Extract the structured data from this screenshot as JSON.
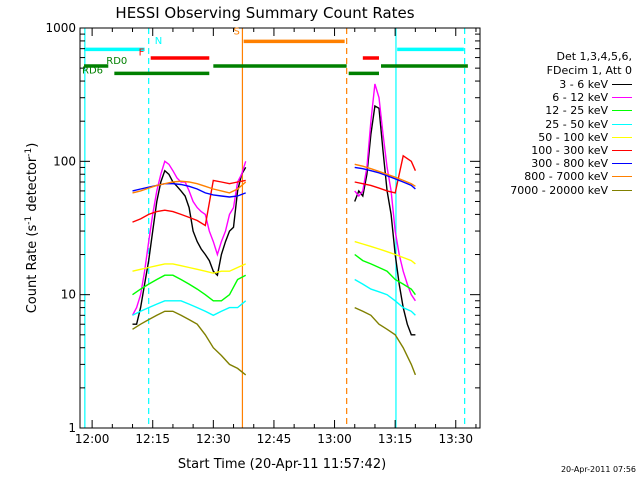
{
  "chart_data": {
    "type": "line",
    "title": "HESSI Observing Summary Count Rates",
    "xlabel": "Start Time (20-Apr-11 11:57:42)",
    "ylabel_parts": [
      "Count Rate (s",
      "-1",
      " detector",
      "-1",
      ")"
    ],
    "y_scale": "log",
    "ylim": [
      1,
      1000
    ],
    "y_ticks": [
      1,
      10,
      100,
      1000
    ],
    "y_ticklabels": [
      "1",
      "10",
      "100",
      "1000"
    ],
    "xlim": [
      -3,
      96
    ],
    "x_ticks": [
      0,
      15,
      30,
      45,
      60,
      75,
      90
    ],
    "x_ticklabels": [
      "12:00",
      "12:15",
      "12:30",
      "12:45",
      "13:00",
      "13:15",
      "13:30"
    ],
    "legend": {
      "header": [
        "Det 1,3,4,5,6,",
        "FDecim 1, Att 0"
      ],
      "placement": "right, outside plot"
    },
    "series": [
      {
        "name": "3 - 6 keV",
        "color": "#000000",
        "x": [
          10,
          11,
          12,
          13,
          14,
          15,
          16,
          17,
          18,
          19,
          20,
          21,
          22,
          23,
          24,
          25,
          26,
          27,
          28,
          29,
          30,
          31,
          32,
          33,
          34,
          35,
          36,
          37,
          38,
          null,
          65,
          66,
          67,
          68,
          69,
          70,
          71,
          72,
          73,
          74,
          75,
          76,
          77,
          78,
          79,
          80
        ],
        "y": [
          6,
          6,
          8,
          12,
          18,
          30,
          50,
          70,
          85,
          80,
          70,
          65,
          60,
          55,
          45,
          30,
          25,
          22,
          20,
          18,
          15,
          14,
          20,
          25,
          30,
          32,
          60,
          80,
          90,
          null,
          50,
          60,
          55,
          80,
          160,
          260,
          250,
          120,
          60,
          40,
          20,
          12,
          8,
          6,
          5,
          5
        ]
      },
      {
        "name": "6 - 12 keV",
        "color": "#ff00ff",
        "x": [
          10,
          11,
          12,
          13,
          14,
          15,
          16,
          17,
          18,
          19,
          20,
          21,
          22,
          23,
          24,
          25,
          26,
          27,
          28,
          29,
          30,
          31,
          32,
          33,
          34,
          35,
          36,
          37,
          38,
          null,
          65,
          66,
          67,
          68,
          69,
          70,
          71,
          72,
          73,
          74,
          75,
          76,
          77,
          78,
          79,
          80
        ],
        "y": [
          7,
          8,
          10,
          15,
          25,
          40,
          60,
          80,
          100,
          95,
          85,
          75,
          70,
          70,
          60,
          50,
          45,
          42,
          40,
          30,
          25,
          20,
          25,
          30,
          40,
          45,
          70,
          80,
          100,
          null,
          60,
          55,
          60,
          90,
          200,
          380,
          300,
          160,
          90,
          60,
          30,
          20,
          15,
          12,
          10,
          9
        ]
      },
      {
        "name": "12 - 25 keV",
        "color": "#00ff00",
        "x": [
          10,
          12,
          14,
          16,
          18,
          20,
          22,
          24,
          26,
          28,
          30,
          32,
          34,
          36,
          38,
          null,
          65,
          67,
          69,
          71,
          73,
          75,
          77,
          79,
          80
        ],
        "y": [
          10,
          11,
          12,
          13,
          14,
          14,
          13,
          12,
          11,
          10,
          9,
          9,
          10,
          13,
          14,
          null,
          20,
          18,
          17,
          16,
          15,
          13,
          12,
          11,
          10
        ]
      },
      {
        "name": "25 - 50 keV",
        "color": "#00ffff",
        "x": [
          10,
          12,
          14,
          16,
          18,
          20,
          22,
          24,
          26,
          28,
          30,
          32,
          34,
          36,
          38,
          null,
          65,
          67,
          69,
          71,
          73,
          75,
          77,
          79,
          80
        ],
        "y": [
          7,
          7.5,
          8,
          8.5,
          9,
          9,
          9,
          8.5,
          8,
          7.5,
          7,
          7.5,
          8,
          8,
          9,
          null,
          13,
          12,
          11,
          10.5,
          10,
          9,
          8,
          7.5,
          7
        ]
      },
      {
        "name": "50 - 100 keV",
        "color": "#ffff00",
        "x": [
          10,
          12,
          14,
          16,
          18,
          20,
          22,
          24,
          26,
          28,
          30,
          32,
          34,
          36,
          38,
          null,
          65,
          67,
          69,
          71,
          73,
          75,
          77,
          79,
          80
        ],
        "y": [
          15,
          15.5,
          16,
          16.5,
          17,
          17,
          16.5,
          16,
          15.5,
          15,
          14.5,
          15,
          15,
          16,
          17,
          null,
          25,
          24,
          23,
          22,
          21,
          20,
          19,
          18,
          17
        ]
      },
      {
        "name": "100 - 300 keV",
        "color": "#ff0000",
        "x": [
          10,
          12,
          14,
          16,
          18,
          20,
          22,
          24,
          26,
          28,
          30,
          32,
          34,
          36,
          38,
          null,
          65,
          67,
          69,
          71,
          73,
          75,
          77,
          79,
          80
        ],
        "y": [
          35,
          37,
          40,
          42,
          43,
          42,
          40,
          38,
          36,
          33,
          72,
          70,
          68,
          70,
          72,
          null,
          70,
          68,
          66,
          63,
          60,
          58,
          110,
          100,
          85
        ]
      },
      {
        "name": "300 - 800 keV",
        "color": "#0000ff",
        "x": [
          10,
          12,
          14,
          16,
          18,
          20,
          22,
          24,
          26,
          28,
          30,
          32,
          34,
          36,
          38,
          null,
          65,
          67,
          69,
          71,
          73,
          75,
          77,
          79,
          80
        ],
        "y": [
          60,
          62,
          64,
          66,
          68,
          68,
          67,
          65,
          62,
          58,
          56,
          55,
          54,
          55,
          58,
          null,
          90,
          88,
          85,
          82,
          78,
          74,
          70,
          66,
          62
        ]
      },
      {
        "name": "800 - 7000 keV",
        "color": "#ff8000",
        "x": [
          10,
          12,
          14,
          16,
          18,
          20,
          22,
          24,
          26,
          28,
          30,
          32,
          34,
          36,
          38,
          null,
          65,
          67,
          69,
          71,
          73,
          75,
          77,
          79,
          80
        ],
        "y": [
          58,
          60,
          63,
          66,
          68,
          70,
          71,
          70,
          68,
          65,
          62,
          60,
          58,
          62,
          70,
          null,
          95,
          92,
          88,
          84,
          80,
          76,
          72,
          68,
          65
        ]
      },
      {
        "name": "7000 - 20000 keV",
        "color": "#808000",
        "x": [
          10,
          12,
          14,
          16,
          18,
          20,
          22,
          24,
          26,
          28,
          30,
          32,
          34,
          36,
          38,
          null,
          65,
          67,
          69,
          71,
          73,
          75,
          77,
          79,
          80
        ],
        "y": [
          5.5,
          6,
          6.5,
          7,
          7.5,
          7.5,
          7,
          6.5,
          6,
          5,
          4,
          3.5,
          3,
          2.8,
          2.5,
          null,
          8,
          7.5,
          7,
          6,
          5.5,
          5,
          4,
          3,
          2.5
        ]
      }
    ],
    "vertical_markers": [
      {
        "x": -1.8,
        "color": "#00ffff",
        "style": "solid"
      },
      {
        "x": 14,
        "color": "#00ffff",
        "style": "dashed"
      },
      {
        "x": 37.2,
        "color": "#ff8000",
        "style": "solid"
      },
      {
        "x": 63,
        "color": "#ff8000",
        "style": "dashed"
      },
      {
        "x": 75.2,
        "color": "#00ffff",
        "style": "solid"
      },
      {
        "x": 92.2,
        "color": "#00ffff",
        "style": "dashed"
      }
    ],
    "flag_lines": [
      {
        "label": "N",
        "color": "#00ffff",
        "log_y": 2.84,
        "segments": [
          [
            -2,
            13
          ],
          [
            75.5,
            92
          ]
        ]
      },
      {
        "label": "S",
        "color": "#ff8000",
        "log_y": 2.9,
        "segments": [
          [
            37.5,
            62.5
          ]
        ]
      },
      {
        "label": "F",
        "color": "#ff0000",
        "log_y": 2.775,
        "segments": [
          [
            14.5,
            29
          ],
          [
            67,
            71
          ]
        ]
      },
      {
        "label": "RD0",
        "color": "#008000",
        "log_y": 2.715,
        "segments": [
          [
            -2,
            4
          ],
          [
            30,
            63
          ],
          [
            71.5,
            93
          ]
        ]
      },
      {
        "label": "RD6",
        "color": "#008000",
        "log_y": 2.66,
        "segments": [
          [
            5.5,
            29
          ],
          [
            63.5,
            71
          ]
        ]
      }
    ],
    "flag_label_positions": [
      {
        "label": "N",
        "x": 15.5,
        "log_y": 2.88
      },
      {
        "label": "S",
        "x": 35,
        "log_y": 2.95
      },
      {
        "label": "F",
        "x": 11.5,
        "log_y": 2.795
      },
      {
        "label": "RD0",
        "x": 3.5,
        "log_y": 2.73
      },
      {
        "label": "RD6",
        "x": -2.5,
        "log_y": 2.66
      }
    ],
    "footer_stamp": "20-Apr-2011 07:56"
  }
}
